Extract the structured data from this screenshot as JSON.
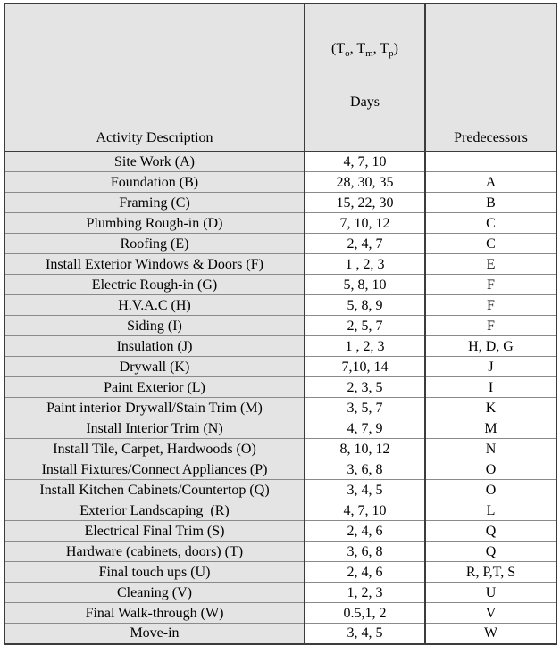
{
  "colors": {
    "header_bg": "#e4e4e4",
    "activity_col_bg": "#e4e4e4",
    "cell_bg": "#ffffff",
    "border_dark": "#3c3c3c",
    "border_light": "#8a8a8a"
  },
  "table": {
    "header": {
      "activity": "Activity Description",
      "duration": {
        "open": "(T",
        "sub_o": "o",
        "mid1": ", T",
        "sub_m": "m",
        "mid2": ", T",
        "sub_p": "p",
        "close": ")",
        "line2": "Days"
      },
      "predecessors": "Predecessors"
    },
    "rows": [
      {
        "activity": "Site Work (A)",
        "days": "4, 7, 10",
        "pred": ""
      },
      {
        "activity": "Foundation (B)",
        "days": "28, 30, 35",
        "pred": "A"
      },
      {
        "activity": "Framing (C)",
        "days": "15, 22, 30",
        "pred": "B"
      },
      {
        "activity": "Plumbing Rough-in (D)",
        "days": "7, 10, 12",
        "pred": "C"
      },
      {
        "activity": "Roofing (E)",
        "days": "2, 4, 7",
        "pred": "C"
      },
      {
        "activity": "Install Exterior Windows & Doors (F)",
        "days": "1 , 2, 3",
        "pred": "E"
      },
      {
        "activity": "Electric Rough-in (G)",
        "days": "5, 8, 10",
        "pred": "F"
      },
      {
        "activity": "H.V.A.C (H)",
        "days": "5, 8, 9",
        "pred": "F"
      },
      {
        "activity": "Siding (I)",
        "days": "2, 5, 7",
        "pred": "F"
      },
      {
        "activity": "Insulation (J)",
        "days": "1 , 2, 3",
        "pred": "H, D, G"
      },
      {
        "activity": "Drywall (K)",
        "days": "7,10, 14",
        "pred": "J"
      },
      {
        "activity": "Paint Exterior (L)",
        "days": "2, 3, 5",
        "pred": "I"
      },
      {
        "activity": "Paint interior Drywall/Stain Trim (M)",
        "days": "3, 5, 7",
        "pred": "K"
      },
      {
        "activity": "Install Interior Trim (N)",
        "days": "4, 7, 9",
        "pred": "M"
      },
      {
        "activity": "Install Tile, Carpet, Hardwoods (O)",
        "days": "8, 10, 12",
        "pred": "N"
      },
      {
        "activity": "Install Fixtures/Connect Appliances (P)",
        "days": "3, 6, 8",
        "pred": "O"
      },
      {
        "activity": "Install Kitchen Cabinets/Countertop (Q)",
        "days": "3, 4, 5",
        "pred": "O"
      },
      {
        "activity": "Exterior Landscaping  (R)",
        "days": "4, 7, 10",
        "pred": "L"
      },
      {
        "activity": "Electrical Final Trim (S)",
        "days": "2, 4, 6",
        "pred": "Q"
      },
      {
        "activity": "Hardware (cabinets, doors) (T)",
        "days": "3, 6, 8",
        "pred": "Q"
      },
      {
        "activity": "Final touch ups (U)",
        "days": "2, 4, 6",
        "pred": "R, P,T, S"
      },
      {
        "activity": "Cleaning (V)",
        "days": "1, 2, 3",
        "pred": "U"
      },
      {
        "activity": "Final Walk-through (W)",
        "days": "0.5,1, 2",
        "pred": "V"
      },
      {
        "activity": "Move-in",
        "days": "3, 4, 5",
        "pred": "W"
      }
    ]
  }
}
